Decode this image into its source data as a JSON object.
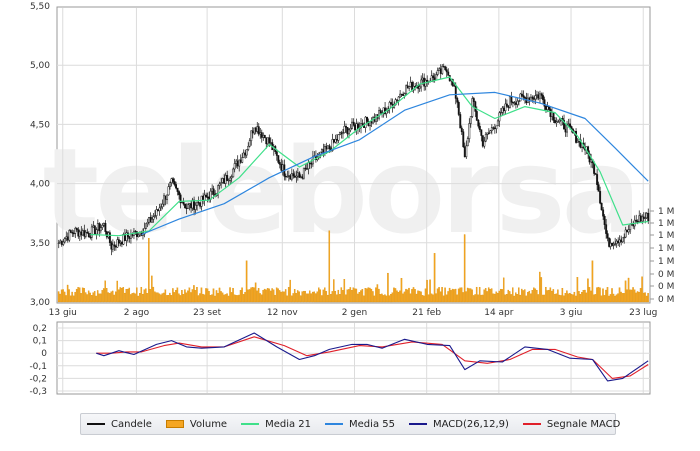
{
  "watermark": "teleborsa",
  "colors": {
    "candle": "#111111",
    "volume": "#f5a623",
    "ma21": "#3fe08a",
    "ma55": "#2e86de",
    "macd": "#1a1a8c",
    "signal": "#e0202a",
    "grid": "#dcdcdc",
    "frame": "#999999"
  },
  "legend": [
    {
      "label": "Candele",
      "kind": "line",
      "color": "#111111"
    },
    {
      "label": "Volume",
      "kind": "box",
      "color": "#f5a623"
    },
    {
      "label": "Media 21",
      "kind": "line",
      "color": "#3fe08a"
    },
    {
      "label": "Media 55",
      "kind": "line",
      "color": "#2e86de"
    },
    {
      "label": "MACD(26,12,9)",
      "kind": "line",
      "color": "#1a1a8c"
    },
    {
      "label": "Segnale MACD",
      "kind": "line",
      "color": "#e0202a"
    }
  ],
  "chart_data": [
    {
      "type": "candlestick",
      "y_ticks": [
        "5,50",
        "5,00",
        "4,50",
        "4,00",
        "3,50",
        "3,00"
      ],
      "y_tick_values": [
        5.5,
        5.0,
        4.5,
        4.0,
        3.5,
        3.0
      ],
      "ylim": [
        3.0,
        5.5
      ],
      "x_ticks": [
        "13 giu",
        "2 ago",
        "23 set",
        "12 nov",
        "2 gen",
        "21 feb",
        "14 apr",
        "3 giu",
        "23 lug"
      ],
      "volume_ticks": [
        "1 M",
        "1 M",
        "1 M",
        "1 M",
        "1 M",
        "0 M",
        "0 M",
        "0 M"
      ],
      "series": [
        {
          "name": "Candele",
          "keypoints": [
            [
              0,
              3.5
            ],
            [
              10,
              3.6
            ],
            [
              20,
              3.58
            ],
            [
              30,
              3.65
            ],
            [
              35,
              3.47
            ],
            [
              45,
              3.55
            ],
            [
              55,
              3.6
            ],
            [
              65,
              3.75
            ],
            [
              75,
              4.0
            ],
            [
              85,
              3.8
            ],
            [
              95,
              3.85
            ],
            [
              105,
              3.95
            ],
            [
              115,
              4.1
            ],
            [
              125,
              4.3
            ],
            [
              130,
              4.5
            ],
            [
              140,
              4.35
            ],
            [
              150,
              4.1
            ],
            [
              160,
              4.05
            ],
            [
              170,
              4.2
            ],
            [
              180,
              4.3
            ],
            [
              190,
              4.45
            ],
            [
              200,
              4.5
            ],
            [
              210,
              4.55
            ],
            [
              220,
              4.65
            ],
            [
              230,
              4.8
            ],
            [
              240,
              4.85
            ],
            [
              250,
              4.9
            ],
            [
              258,
              4.98
            ],
            [
              265,
              4.7
            ],
            [
              270,
              4.2
            ],
            [
              275,
              4.7
            ],
            [
              282,
              4.35
            ],
            [
              290,
              4.5
            ],
            [
              300,
              4.7
            ],
            [
              310,
              4.72
            ],
            [
              320,
              4.75
            ],
            [
              330,
              4.55
            ],
            [
              340,
              4.45
            ],
            [
              350,
              4.3
            ],
            [
              357,
              4.1
            ],
            [
              365,
              3.5
            ],
            [
              375,
              3.55
            ],
            [
              385,
              3.7
            ],
            [
              392,
              3.72
            ]
          ]
        },
        {
          "name": "Media 21",
          "values": [
            [
              21,
              3.57
            ],
            [
              40,
              3.56
            ],
            [
              60,
              3.6
            ],
            [
              80,
              3.85
            ],
            [
              100,
              3.86
            ],
            [
              120,
              4.05
            ],
            [
              140,
              4.33
            ],
            [
              160,
              4.14
            ],
            [
              180,
              4.27
            ],
            [
              200,
              4.47
            ],
            [
              220,
              4.63
            ],
            [
              240,
              4.84
            ],
            [
              260,
              4.9
            ],
            [
              275,
              4.65
            ],
            [
              290,
              4.55
            ],
            [
              310,
              4.65
            ],
            [
              330,
              4.6
            ],
            [
              345,
              4.4
            ],
            [
              360,
              4.1
            ],
            [
              375,
              3.65
            ],
            [
              392,
              3.68
            ]
          ]
        },
        {
          "name": "Media 55",
          "values": [
            [
              55,
              3.57
            ],
            [
              80,
              3.7
            ],
            [
              110,
              3.83
            ],
            [
              140,
              4.05
            ],
            [
              170,
              4.23
            ],
            [
              200,
              4.37
            ],
            [
              230,
              4.62
            ],
            [
              260,
              4.75
            ],
            [
              290,
              4.77
            ],
            [
              320,
              4.68
            ],
            [
              350,
              4.55
            ],
            [
              370,
              4.3
            ],
            [
              392,
              4.02
            ]
          ]
        }
      ],
      "volume_max": 1.2,
      "volume_spikes": [
        [
          60,
          0.85
        ],
        [
          125,
          0.55
        ],
        [
          180,
          0.95
        ],
        [
          250,
          0.65
        ],
        [
          270,
          0.9
        ],
        [
          320,
          0.4
        ],
        [
          355,
          0.55
        ]
      ]
    },
    {
      "type": "line",
      "y_ticks": [
        "0,2",
        "0,1",
        "0",
        "-0,1",
        "-0,2",
        "-0,3"
      ],
      "y_tick_values": [
        0.2,
        0.1,
        0.0,
        -0.1,
        -0.2,
        -0.3
      ],
      "ylim": [
        -0.3,
        0.2
      ],
      "series": [
        {
          "name": "MACD(26,12,9)",
          "values": [
            [
              25,
              0.0
            ],
            [
              30,
              -0.02
            ],
            [
              40,
              0.02
            ],
            [
              50,
              -0.01
            ],
            [
              65,
              0.07
            ],
            [
              75,
              0.1
            ],
            [
              85,
              0.05
            ],
            [
              95,
              0.04
            ],
            [
              110,
              0.05
            ],
            [
              130,
              0.16
            ],
            [
              145,
              0.05
            ],
            [
              160,
              -0.05
            ],
            [
              170,
              -0.02
            ],
            [
              180,
              0.03
            ],
            [
              195,
              0.07
            ],
            [
              205,
              0.07
            ],
            [
              215,
              0.04
            ],
            [
              230,
              0.11
            ],
            [
              245,
              0.07
            ],
            [
              260,
              0.06
            ],
            [
              270,
              -0.13
            ],
            [
              280,
              -0.06
            ],
            [
              295,
              -0.07
            ],
            [
              310,
              0.05
            ],
            [
              325,
              0.03
            ],
            [
              340,
              -0.04
            ],
            [
              355,
              -0.05
            ],
            [
              365,
              -0.22
            ],
            [
              375,
              -0.2
            ],
            [
              392,
              -0.06
            ]
          ]
        },
        {
          "name": "Segnale MACD",
          "values": [
            [
              25,
              0.0
            ],
            [
              35,
              0.0
            ],
            [
              45,
              0.01
            ],
            [
              55,
              0.01
            ],
            [
              70,
              0.06
            ],
            [
              80,
              0.08
            ],
            [
              95,
              0.05
            ],
            [
              110,
              0.05
            ],
            [
              130,
              0.13
            ],
            [
              150,
              0.06
            ],
            [
              165,
              -0.02
            ],
            [
              180,
              0.01
            ],
            [
              200,
              0.06
            ],
            [
              215,
              0.05
            ],
            [
              235,
              0.09
            ],
            [
              255,
              0.07
            ],
            [
              270,
              -0.06
            ],
            [
              285,
              -0.08
            ],
            [
              300,
              -0.05
            ],
            [
              315,
              0.03
            ],
            [
              330,
              0.03
            ],
            [
              345,
              -0.03
            ],
            [
              355,
              -0.05
            ],
            [
              368,
              -0.2
            ],
            [
              380,
              -0.18
            ],
            [
              392,
              -0.09
            ]
          ]
        }
      ]
    }
  ]
}
